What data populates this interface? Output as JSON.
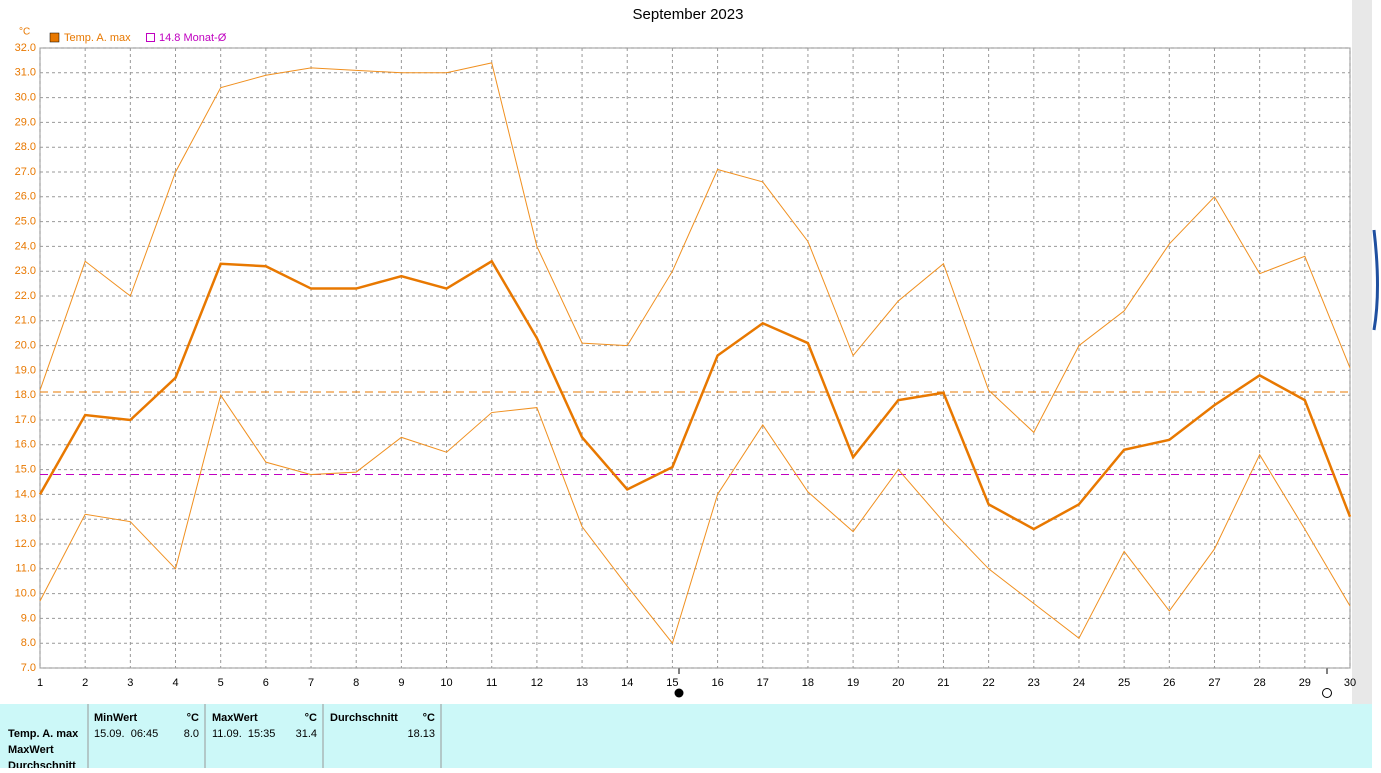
{
  "chart_data": {
    "type": "line",
    "title": "September 2023",
    "y_unit": "°C",
    "x": [
      1,
      2,
      3,
      4,
      5,
      6,
      7,
      8,
      9,
      10,
      11,
      12,
      13,
      14,
      15,
      16,
      17,
      18,
      19,
      20,
      21,
      22,
      23,
      24,
      25,
      26,
      27,
      28,
      29,
      30
    ],
    "xlim": [
      1,
      30
    ],
    "xticks": [
      1,
      2,
      3,
      4,
      5,
      6,
      7,
      8,
      9,
      10,
      11,
      12,
      13,
      14,
      15,
      16,
      17,
      18,
      19,
      20,
      21,
      22,
      23,
      24,
      25,
      26,
      27,
      28,
      29,
      30
    ],
    "ylim": [
      7,
      32
    ],
    "yticks": [
      {
        "value": 7,
        "label": "7.0"
      },
      {
        "value": 8,
        "label": "8.0"
      },
      {
        "value": 9,
        "label": "9.0"
      },
      {
        "value": 10,
        "label": "10.0"
      },
      {
        "value": 11,
        "label": "11.0"
      },
      {
        "value": 12,
        "label": "12.0"
      },
      {
        "value": 13,
        "label": "13.0"
      },
      {
        "value": 14,
        "label": "14.0"
      },
      {
        "value": 15,
        "label": "15.0"
      },
      {
        "value": 16,
        "label": "16.0"
      },
      {
        "value": 17,
        "label": "17.0"
      },
      {
        "value": 18,
        "label": "18.0"
      },
      {
        "value": 19,
        "label": "19.0"
      },
      {
        "value": 20,
        "label": "20.0"
      },
      {
        "value": 21,
        "label": "21.0"
      },
      {
        "value": 22,
        "label": "22.0"
      },
      {
        "value": 23,
        "label": "23.0"
      },
      {
        "value": 24,
        "label": "24.0"
      },
      {
        "value": 25,
        "label": "25.0"
      },
      {
        "value": 26,
        "label": "26.0"
      },
      {
        "value": 27,
        "label": "27.0"
      },
      {
        "value": 28,
        "label": "28.0"
      },
      {
        "value": 29,
        "label": "29.0"
      },
      {
        "value": 30,
        "label": "30.0"
      },
      {
        "value": 31,
        "label": "31.0"
      },
      {
        "value": 32,
        "label": "32.0"
      }
    ],
    "grid": true,
    "series": [
      {
        "name": "Temp. A. max",
        "color": "#e87800",
        "values": [
          14.0,
          17.2,
          17.0,
          18.7,
          23.3,
          23.2,
          22.3,
          22.3,
          22.8,
          22.3,
          23.4,
          20.3,
          16.3,
          14.2,
          15.1,
          19.6,
          20.9,
          20.1,
          15.5,
          17.8,
          18.1,
          13.6,
          12.6,
          13.6,
          15.8,
          16.2,
          17.6,
          18.8,
          17.8,
          13.1
        ]
      }
    ],
    "band": {
      "color": "#f09020",
      "high": [
        18.2,
        23.4,
        22.0,
        27.0,
        30.4,
        30.9,
        31.2,
        31.1,
        31.0,
        31.0,
        31.4,
        24.0,
        20.1,
        20.0,
        23.0,
        27.1,
        26.6,
        24.2,
        19.6,
        21.8,
        23.3,
        18.2,
        16.5,
        20.0,
        21.4,
        24.1,
        26.0,
        22.9,
        23.6,
        19.1
      ],
      "low": [
        9.7,
        13.2,
        12.9,
        11.0,
        18.0,
        15.3,
        14.8,
        14.9,
        16.3,
        15.7,
        17.3,
        17.5,
        12.7,
        10.3,
        8.0,
        14.0,
        16.8,
        14.1,
        12.5,
        15.0,
        12.9,
        11.0,
        9.6,
        8.2,
        11.7,
        9.3,
        11.8,
        15.6,
        12.6,
        9.5
      ]
    },
    "month_mean": {
      "value": 14.8,
      "label": "14.8 Monat-Ø",
      "color": "#c000c0"
    }
  },
  "table": {
    "header": {
      "min": "MinWert",
      "max": "MaxWert",
      "avg": "Durchschnitt",
      "unit": "°C"
    },
    "rows": [
      {
        "label": "Temp. A. max",
        "min_time": "15.09.  06:45",
        "min": "8.0",
        "max_time": "11.09.  15:35",
        "max": "31.4",
        "avg": 18.13
      },
      {
        "label": "MaxWert"
      },
      {
        "label": "Durchschnitt"
      }
    ]
  }
}
